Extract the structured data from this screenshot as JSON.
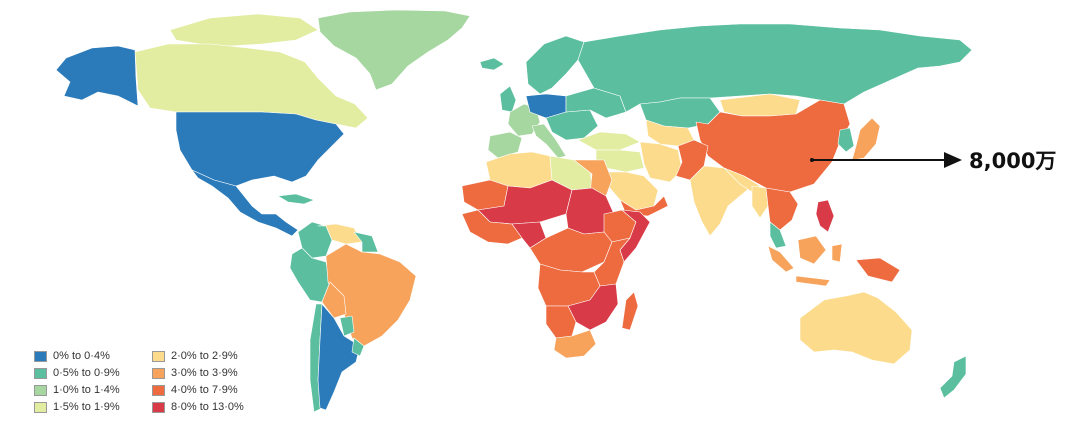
{
  "legend": {
    "items": [
      {
        "label": "0% to 0·4%",
        "color": "#2b7bba"
      },
      {
        "label": "0·5% to 0·9%",
        "color": "#5bbf9f"
      },
      {
        "label": "1·0% to 1·4%",
        "color": "#a6d7a0"
      },
      {
        "label": "1·5% to 1·9%",
        "color": "#e2eda2"
      },
      {
        "label": "2·0% to 2·9%",
        "color": "#fcdc8c"
      },
      {
        "label": "3·0% to 3·9%",
        "color": "#f7a35c"
      },
      {
        "label": "4·0% to 7·9%",
        "color": "#ee6a3f"
      },
      {
        "label": "8·0% to 13·0%",
        "color": "#d93a48"
      }
    ]
  },
  "annotation": {
    "label": "8,000万",
    "points_to": "China"
  },
  "ocean_color": "#ffffff",
  "border_color": "#ffffff"
}
